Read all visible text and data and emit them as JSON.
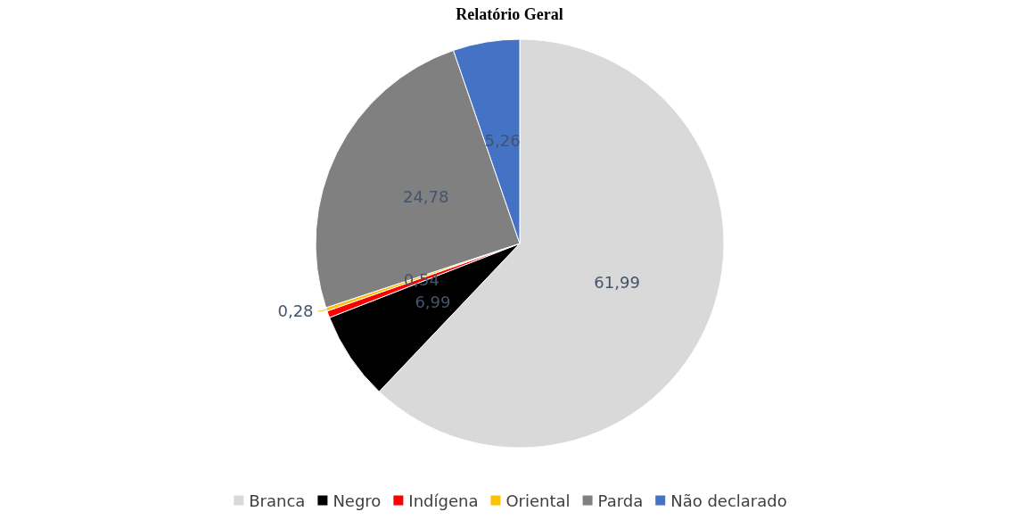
{
  "chart_data": {
    "type": "pie",
    "title": "Relatório Geral",
    "categories": [
      "Branca",
      "Negro",
      "Indígena",
      "Oriental",
      "Parda",
      "Não declarado"
    ],
    "values": [
      61.99,
      6.99,
      0.54,
      0.28,
      24.78,
      5.26
    ],
    "colors": [
      "#d9d9d9",
      "#000000",
      "#ff0000",
      "#ffc000",
      "#808080",
      "#4472c4"
    ],
    "value_labels": [
      "61,99",
      "6,99",
      "0,54",
      "0,28",
      "24,78",
      "5,26"
    ],
    "legend": "bottom"
  }
}
